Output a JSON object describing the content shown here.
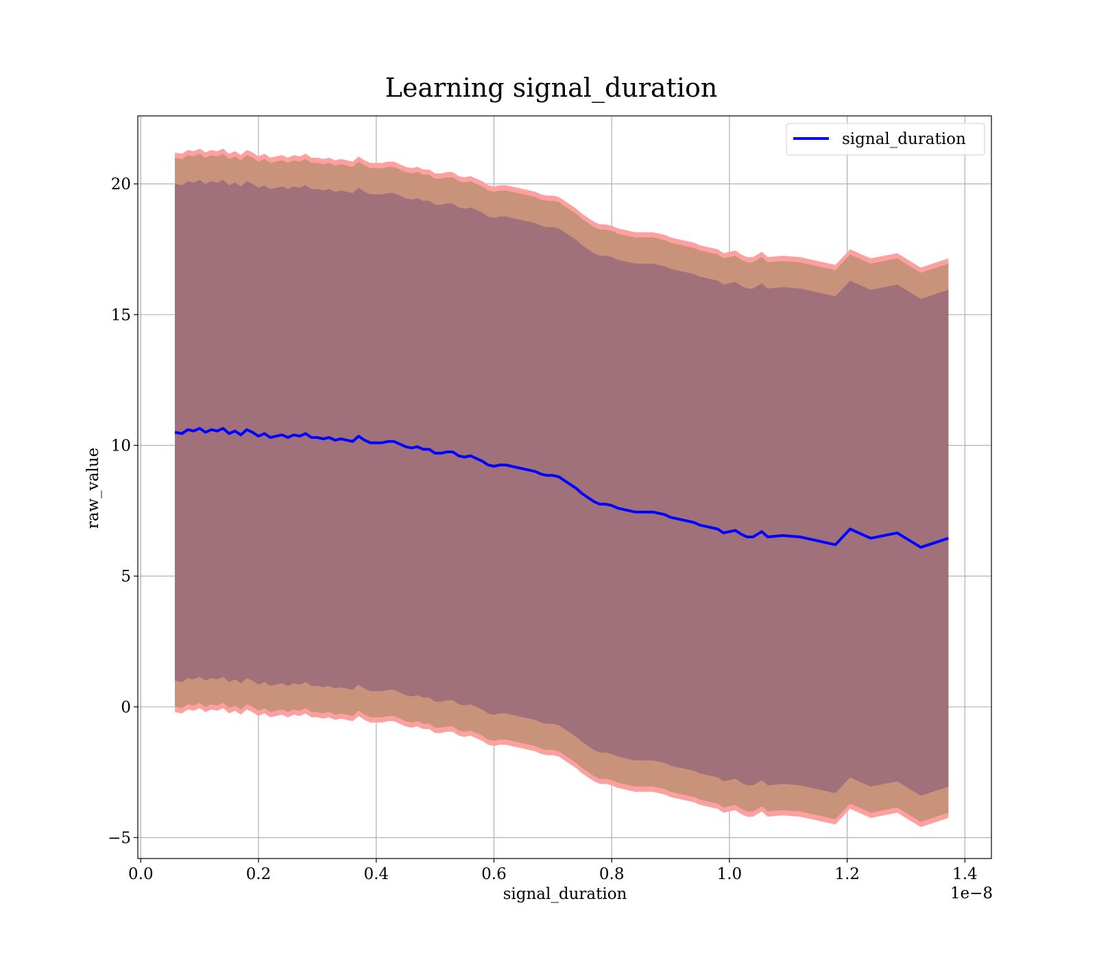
{
  "chart_data": {
    "type": "line",
    "title": "Learning signal_duration",
    "xlabel": "signal_duration",
    "ylabel": "raw_value",
    "x_offset_text": "1e−8",
    "xlim": [
      -0.005,
      1.445
    ],
    "ylim": [
      -5.8,
      22.6
    ],
    "x_ticks": [
      0.0,
      0.2,
      0.4,
      0.6,
      0.8,
      1.0,
      1.2,
      1.4
    ],
    "x_tick_labels": [
      "0.0",
      "0.2",
      "0.4",
      "0.6",
      "0.8",
      "1.0",
      "1.2",
      "1.4"
    ],
    "y_ticks": [
      -5,
      0,
      5,
      10,
      15,
      20
    ],
    "y_tick_labels": [
      "−5",
      "0",
      "5",
      "10",
      "15",
      "20"
    ],
    "grid": true,
    "legend": {
      "position": "top-right",
      "entries": [
        "signal_duration"
      ]
    },
    "colors": {
      "line": "#0000ff",
      "outer_band": "#ffa0a0",
      "middle_band": "#c8937a",
      "inner_band": "#a1717b"
    },
    "series": [
      {
        "name": "signal_duration",
        "x": [
          0.058,
          0.07,
          0.08,
          0.09,
          0.1,
          0.11,
          0.12,
          0.13,
          0.14,
          0.15,
          0.16,
          0.17,
          0.18,
          0.19,
          0.2,
          0.21,
          0.22,
          0.23,
          0.24,
          0.25,
          0.26,
          0.27,
          0.28,
          0.29,
          0.3,
          0.31,
          0.32,
          0.33,
          0.34,
          0.35,
          0.36,
          0.37,
          0.38,
          0.39,
          0.4,
          0.41,
          0.42,
          0.43,
          0.44,
          0.45,
          0.46,
          0.47,
          0.48,
          0.49,
          0.5,
          0.51,
          0.52,
          0.53,
          0.54,
          0.55,
          0.56,
          0.57,
          0.58,
          0.59,
          0.6,
          0.61,
          0.62,
          0.63,
          0.64,
          0.65,
          0.66,
          0.67,
          0.68,
          0.69,
          0.7,
          0.71,
          0.72,
          0.73,
          0.74,
          0.75,
          0.76,
          0.77,
          0.78,
          0.79,
          0.8,
          0.81,
          0.82,
          0.83,
          0.84,
          0.85,
          0.86,
          0.87,
          0.88,
          0.89,
          0.9,
          0.91,
          0.92,
          0.93,
          0.94,
          0.95,
          0.96,
          0.98,
          0.99,
          1.01,
          1.02,
          1.03,
          1.04,
          1.055,
          1.065,
          1.09,
          1.12,
          1.18,
          1.205,
          1.24,
          1.285,
          1.325,
          1.372
        ],
        "values": [
          10.5,
          10.45,
          10.6,
          10.55,
          10.65,
          10.5,
          10.6,
          10.55,
          10.65,
          10.45,
          10.55,
          10.4,
          10.6,
          10.5,
          10.35,
          10.45,
          10.3,
          10.35,
          10.4,
          10.3,
          10.4,
          10.35,
          10.45,
          10.3,
          10.3,
          10.25,
          10.3,
          10.2,
          10.25,
          10.2,
          10.15,
          10.35,
          10.2,
          10.1,
          10.1,
          10.1,
          10.15,
          10.15,
          10.05,
          9.95,
          9.9,
          9.95,
          9.85,
          9.85,
          9.7,
          9.7,
          9.75,
          9.75,
          9.6,
          9.55,
          9.6,
          9.5,
          9.4,
          9.25,
          9.2,
          9.25,
          9.25,
          9.2,
          9.15,
          9.1,
          9.05,
          9.0,
          8.9,
          8.85,
          8.85,
          8.8,
          8.65,
          8.5,
          8.35,
          8.15,
          8.0,
          7.85,
          7.75,
          7.75,
          7.7,
          7.6,
          7.55,
          7.5,
          7.45,
          7.45,
          7.45,
          7.45,
          7.4,
          7.35,
          7.25,
          7.2,
          7.15,
          7.1,
          7.05,
          6.95,
          6.9,
          6.8,
          6.65,
          6.75,
          6.6,
          6.5,
          6.5,
          6.7,
          6.5,
          6.55,
          6.5,
          6.2,
          6.8,
          6.45,
          6.65,
          6.1,
          6.45
        ],
        "band_half_widths": [
          9.5,
          10.5,
          10.7
        ]
      }
    ]
  }
}
